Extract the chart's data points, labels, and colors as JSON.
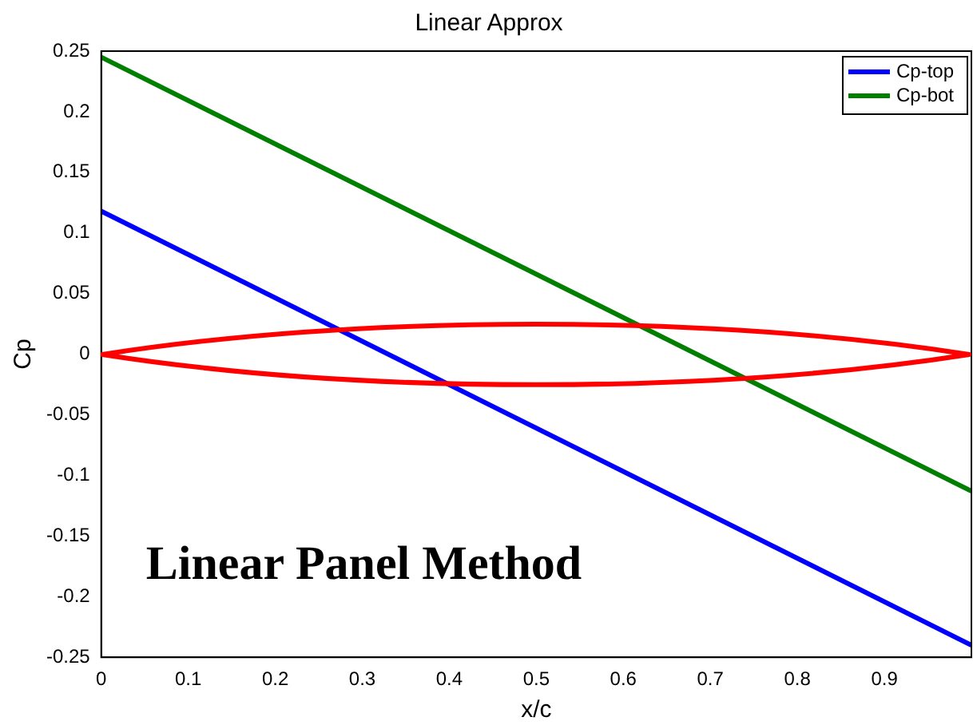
{
  "chart_data": {
    "type": "line",
    "title": "Linear Approx",
    "xlabel": "x/c",
    "ylabel": "Cp",
    "xlim": [
      0,
      1
    ],
    "xticks": [
      0,
      0.1,
      0.2,
      0.3,
      0.4,
      0.5,
      0.6,
      0.7,
      0.8,
      0.9
    ],
    "ylim": [
      -0.25,
      0.25
    ],
    "yticks": [
      -0.25,
      -0.2,
      -0.15,
      -0.1,
      -0.05,
      0,
      0.05,
      0.1,
      0.15,
      0.2,
      0.25
    ],
    "grid": false,
    "legend": "top right",
    "marker": "none",
    "line_style": "solid",
    "annotations": [
      "Linear Panel Method"
    ],
    "x": [
      0,
      1
    ],
    "series": [
      {
        "name": "Cp-top",
        "color": "#0000ff",
        "values": [
          0.118,
          -0.24
        ]
      },
      {
        "name": "Cp-bot",
        "color": "#007f00",
        "values": [
          0.245,
          -0.113
        ]
      }
    ]
  }
}
